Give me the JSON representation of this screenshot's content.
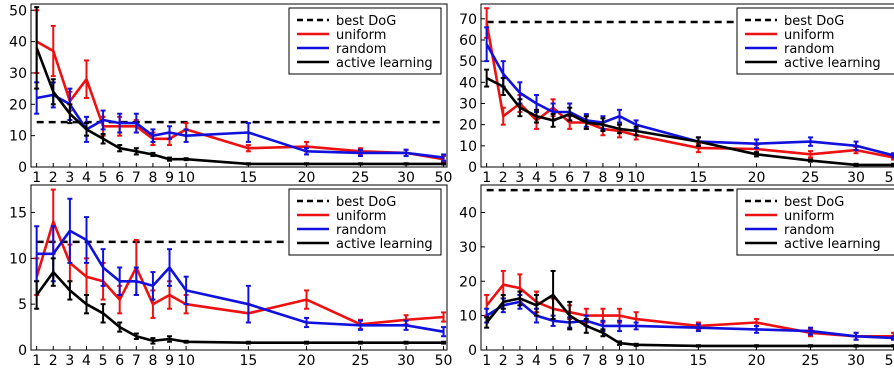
{
  "legend": {
    "best_dog": "best DoG",
    "uniform": "uniform",
    "random": "random",
    "active": "active learning"
  },
  "colors": {
    "best_dog": "#000000",
    "uniform": "#ee1111",
    "random": "#1111dd",
    "active": "#000000"
  },
  "chart_data": [
    {
      "type": "line",
      "panel": "top-left",
      "categories": [
        "1",
        "2",
        "3",
        "4",
        "5",
        "6",
        "7",
        "8",
        "9",
        "10",
        "15",
        "20",
        "25",
        "30",
        "50"
      ],
      "x": [
        1,
        2,
        3,
        4,
        5,
        6,
        7,
        8,
        9,
        10,
        15,
        20,
        25,
        30,
        50
      ],
      "ylim": [
        0,
        52
      ],
      "yticks": [
        0,
        10,
        20,
        30,
        40,
        50
      ],
      "best_dog": 14.3,
      "legend_position": "top-right",
      "series": [
        {
          "key": "uniform",
          "values": [
            40,
            37,
            21,
            28,
            13,
            13,
            13,
            9,
            9,
            12,
            6,
            6.5,
            5,
            4.5,
            2.5
          ],
          "errors": [
            10,
            8,
            3,
            6,
            3,
            3,
            2,
            2,
            2,
            2,
            1,
            1.5,
            1,
            1,
            1
          ]
        },
        {
          "key": "random",
          "values": [
            22,
            23,
            20,
            12,
            15,
            14,
            14,
            10,
            11,
            10,
            11,
            5,
            4.5,
            4.5,
            3
          ],
          "errors": [
            5,
            4,
            5,
            4,
            3,
            3,
            3,
            2,
            2,
            2,
            3,
            1,
            1,
            1,
            1
          ]
        },
        {
          "key": "active",
          "values": [
            38,
            24,
            17,
            12,
            9,
            6,
            5,
            4,
            2.5,
            2.5,
            1,
            1,
            1,
            1,
            1
          ],
          "errors": [
            13,
            4,
            3,
            2,
            1.5,
            1,
            1,
            0.5,
            0.5,
            0.3,
            0.2,
            0.2,
            0.2,
            0.2,
            0.2
          ]
        }
      ]
    },
    {
      "type": "line",
      "panel": "top-right",
      "categories": [
        "1",
        "2",
        "3",
        "4",
        "5",
        "6",
        "7",
        "8",
        "9",
        "10",
        "15",
        "20",
        "25",
        "30",
        "50"
      ],
      "x": [
        1,
        2,
        3,
        4,
        5,
        6,
        7,
        8,
        9,
        10,
        15,
        20,
        25,
        30,
        50
      ],
      "ylim": [
        0,
        77
      ],
      "yticks": [
        0,
        10,
        20,
        30,
        40,
        50,
        60,
        70
      ],
      "best_dog": 68.5,
      "legend_position": "top-right",
      "series": [
        {
          "key": "uniform",
          "values": [
            68,
            24,
            30,
            22,
            28,
            21,
            21,
            18,
            17,
            15,
            9,
            8.5,
            6,
            8,
            4.5
          ],
          "errors": [
            7,
            4,
            4,
            4,
            4,
            3,
            3,
            3,
            3,
            2,
            2,
            2,
            1.5,
            1.5,
            1
          ]
        },
        {
          "key": "random",
          "values": [
            58,
            44,
            35,
            30,
            26,
            26,
            22,
            21,
            24,
            20,
            12,
            11,
            12,
            10,
            5.5
          ],
          "errors": [
            8,
            6,
            5,
            4,
            4,
            4,
            3,
            3,
            3,
            2,
            2,
            2,
            2,
            2,
            1
          ]
        },
        {
          "key": "active",
          "values": [
            42,
            38,
            28,
            24,
            22,
            25,
            21,
            20,
            18,
            17,
            12,
            6,
            3,
            1,
            1
          ],
          "errors": [
            4,
            4,
            4,
            3,
            3,
            3,
            3,
            3,
            2,
            2,
            2,
            1,
            0.5,
            0.5,
            0.5
          ]
        }
      ]
    },
    {
      "type": "line",
      "panel": "bottom-left",
      "categories": [
        "1",
        "2",
        "3",
        "4",
        "5",
        "6",
        "7",
        "8",
        "9",
        "10",
        "15",
        "20",
        "25",
        "30",
        "50"
      ],
      "x": [
        1,
        2,
        3,
        4,
        5,
        6,
        7,
        8,
        9,
        10,
        15,
        20,
        25,
        30,
        50
      ],
      "ylim": [
        0,
        18
      ],
      "yticks": [
        0,
        5,
        10,
        15
      ],
      "best_dog": 11.8,
      "legend_position": "top-right",
      "series": [
        {
          "key": "uniform",
          "values": [
            8,
            14,
            9.5,
            8,
            7.5,
            5.5,
            9,
            5,
            6,
            5,
            4,
            5.5,
            2.8,
            3.3,
            3.6
          ],
          "errors": [
            2,
            3.5,
            2,
            2,
            2,
            1.5,
            3,
            1.5,
            1.5,
            1,
            1,
            1,
            0.5,
            0.5,
            0.5
          ]
        },
        {
          "key": "random",
          "values": [
            10.5,
            10.5,
            13,
            12,
            9,
            7.5,
            7.5,
            7,
            9,
            6.5,
            5,
            3,
            2.7,
            2.7,
            2
          ],
          "errors": [
            3,
            3,
            3.5,
            2.5,
            2,
            1.5,
            1.5,
            1.5,
            2,
            1.5,
            2,
            0.5,
            0.5,
            0.5,
            0.5
          ]
        },
        {
          "key": "active",
          "values": [
            6,
            8.5,
            6.5,
            5,
            4,
            2.5,
            1.5,
            1,
            1.2,
            0.9,
            0.8,
            0.8,
            0.8,
            0.8,
            0.8
          ],
          "errors": [
            1.5,
            1.5,
            1,
            1,
            1,
            0.5,
            0.3,
            0.3,
            0.3,
            0.1,
            0.1,
            0.1,
            0.1,
            0.1,
            0.1
          ]
        }
      ]
    },
    {
      "type": "line",
      "panel": "bottom-right",
      "categories": [
        "1",
        "2",
        "3",
        "4",
        "5",
        "6",
        "7",
        "8",
        "9",
        "10",
        "15",
        "20",
        "25",
        "30",
        "50"
      ],
      "x": [
        1,
        2,
        3,
        4,
        5,
        6,
        7,
        8,
        9,
        10,
        15,
        20,
        25,
        30,
        50
      ],
      "ylim": [
        0,
        48
      ],
      "yticks": [
        0,
        10,
        20,
        30,
        40
      ],
      "best_dog": 46.5,
      "legend_position": "top-right",
      "series": [
        {
          "key": "uniform",
          "values": [
            13,
            19,
            18,
            14,
            12,
            11,
            10,
            10,
            10,
            9,
            7,
            8,
            5,
            4,
            4
          ],
          "errors": [
            3,
            4,
            4,
            3,
            3,
            2,
            2,
            2,
            2,
            2,
            1,
            1,
            1,
            1,
            1
          ]
        },
        {
          "key": "random",
          "values": [
            10,
            13,
            14,
            10,
            8.5,
            8,
            8.5,
            7,
            7,
            7,
            6.5,
            6,
            5.5,
            4,
            3.5
          ],
          "errors": [
            2,
            2,
            2,
            2,
            1.5,
            1.5,
            1.5,
            1.5,
            1.5,
            1,
            1,
            1,
            1,
            1,
            0.5
          ]
        },
        {
          "key": "active",
          "values": [
            8,
            14,
            15,
            13,
            16,
            10,
            7,
            5,
            2,
            1.5,
            1.2,
            1.2,
            1.2,
            1.2,
            1.2
          ],
          "errors": [
            1.5,
            2,
            2,
            3,
            7,
            4,
            2,
            1,
            0.5,
            0.3,
            0.2,
            0.2,
            0.2,
            0.2,
            0.2
          ]
        }
      ]
    }
  ]
}
